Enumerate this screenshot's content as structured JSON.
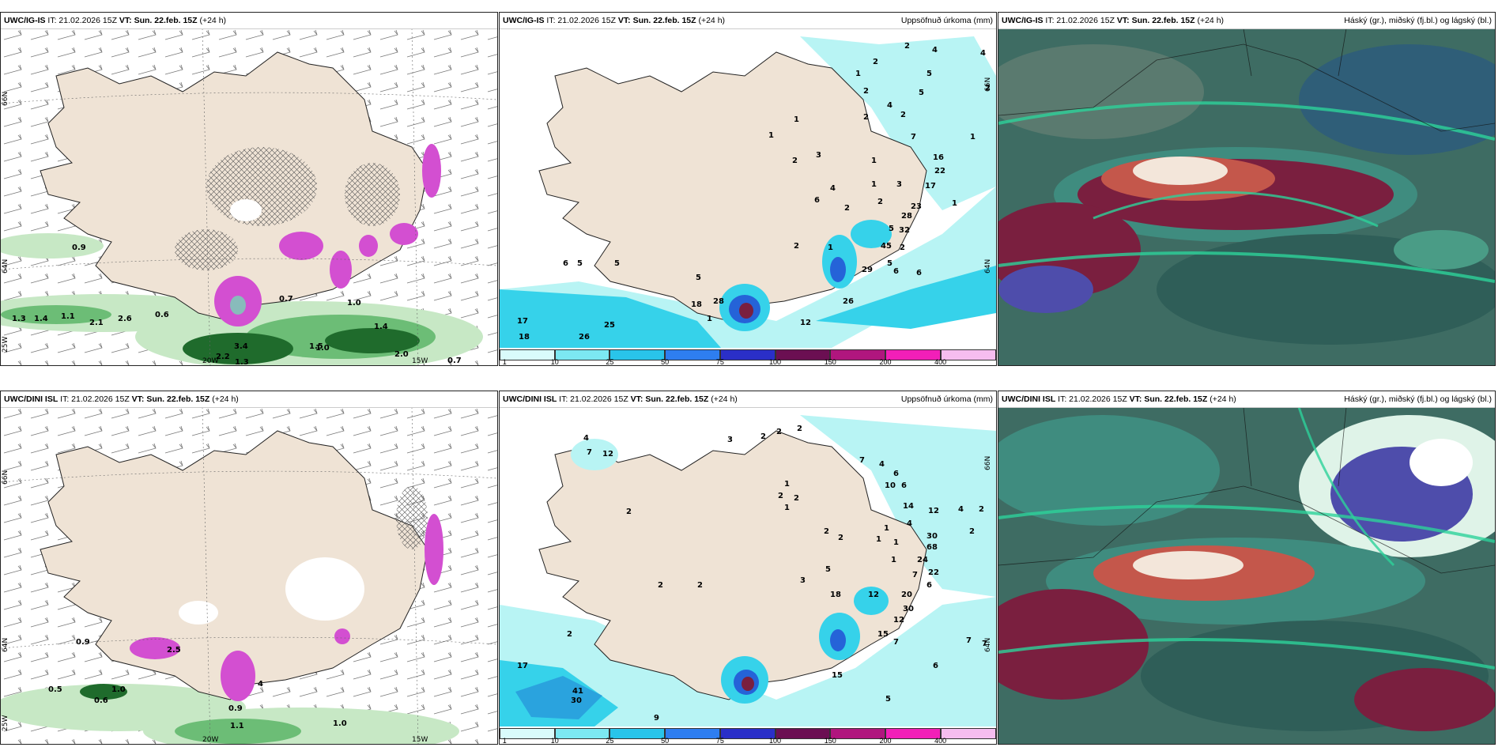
{
  "colors": {
    "land": "#efe3d5",
    "sea_light": "#b8f4f4",
    "sea_mid": "#36d2ea",
    "sea_deep": "#2aa3de",
    "green_light": "#c7e8c5",
    "green_mid": "#6cbd76",
    "green_dark": "#1f6b2c",
    "magenta": "#d34fd1",
    "teal_dark": "#3e6c63",
    "teal_mid": "#3f8c7f",
    "red_dark": "#7a1f3f",
    "blue_purple": "#4e4dab"
  },
  "panels": [
    {
      "model": "UWC/IG-IS",
      "it": "IT: 21.02.2026 15Z",
      "vt_label": "VT:",
      "vt": "Sun. 22.feb. 15Z",
      "lead": "(+24 h)",
      "title_right": "",
      "axis_labels": [
        "66N",
        "64N",
        "25W",
        "20W",
        "15W"
      ],
      "values": [
        "0.9",
        "1.3",
        "1.4",
        "1.1",
        "2.1",
        "2.6",
        "0.6",
        "0.7",
        "1.0",
        "1.4",
        "2.0",
        "0.7",
        "1.5",
        "3.4",
        "2.2",
        "1.0",
        "1.3"
      ]
    },
    {
      "model": "UWC/IG-IS",
      "it": "IT: 21.02.2026 15Z",
      "vt_label": "VT:",
      "vt": "Sun. 22.feb. 15Z",
      "lead": "(+24 h)",
      "title_right": "Uppsöfnuð úrkoma (mm)",
      "axis_labels": [
        "66N",
        "64N"
      ],
      "values": [
        "2",
        "2",
        "4",
        "4",
        "5",
        "2",
        "2",
        "5",
        "1",
        "4",
        "2",
        "2",
        "7",
        "1",
        "1",
        "3",
        "2",
        "1",
        "16",
        "22",
        "17",
        "3",
        "1",
        "1",
        "4",
        "6",
        "2",
        "2",
        "1",
        "23",
        "28",
        "5",
        "32",
        "45",
        "2",
        "5",
        "1",
        "29",
        "6",
        "6",
        "2",
        "5",
        "5",
        "6",
        "5",
        "28",
        "26",
        "17",
        "25",
        "18",
        "26",
        "12",
        "1",
        "18"
      ],
      "colorbar": [
        "1",
        "10",
        "25",
        "50",
        "75",
        "100",
        "150",
        "200",
        "400"
      ]
    },
    {
      "model": "UWC/IG-IS",
      "it": "IT: 21.02.2026 15Z",
      "vt_label": "VT:",
      "vt": "Sun. 22.feb. 15Z",
      "lead": "(+24 h)",
      "title_right": "Háský (gr.), miðský (fj.bl.) og lágský (bl.)"
    },
    {
      "model": "UWC/DINI ISL",
      "it": "IT: 21.02.2026 15Z",
      "vt_label": "VT:",
      "vt": "Sun. 22.feb. 15Z",
      "lead": "(+24 h)",
      "title_right": "",
      "axis_labels": [
        "66N",
        "64N",
        "25W",
        "20W",
        "15W"
      ],
      "values": [
        "0.9",
        "2.5",
        "0.5",
        "0.6",
        "1.0",
        "0.9",
        "1.1",
        "1.0",
        "4"
      ]
    },
    {
      "model": "UWC/DINI ISL",
      "it": "IT: 21.02.2026 15Z",
      "vt_label": "VT:",
      "vt": "Sun. 22.feb. 15Z",
      "lead": "(+24 h)",
      "title_right": "Uppsöfnuð úrkoma (mm)",
      "axis_labels": [
        "66N",
        "64N"
      ],
      "values": [
        "4",
        "7",
        "12",
        "3",
        "2",
        "2",
        "2",
        "7",
        "4",
        "6",
        "10",
        "6",
        "1",
        "2",
        "2",
        "1",
        "14",
        "12",
        "4",
        "2",
        "2",
        "1",
        "1",
        "4",
        "1",
        "2",
        "2",
        "2",
        "5",
        "1",
        "30",
        "68",
        "24",
        "22",
        "7",
        "6",
        "3",
        "18",
        "12",
        "20",
        "30",
        "2",
        "2",
        "15",
        "12",
        "7",
        "7",
        "2",
        "7",
        "6",
        "15",
        "17",
        "41",
        "30",
        "5",
        "9"
      ],
      "colorbar": [
        "1",
        "10",
        "25",
        "50",
        "75",
        "100",
        "150",
        "200",
        "400"
      ]
    },
    {
      "model": "UWC/DINI ISL",
      "it": "IT: 21.02.2026 15Z",
      "vt_label": "VT:",
      "vt": "Sun. 22.feb. 15Z",
      "lead": "(+24 h)",
      "title_right": "Háský (gr.), miðský (fj.bl.) og lágský (bl.)"
    }
  ]
}
